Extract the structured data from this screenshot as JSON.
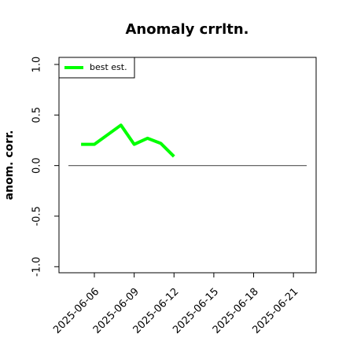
{
  "chart_data": {
    "type": "line",
    "title": "Anomaly crrltn.",
    "ylabel": "anom. corr.",
    "x": [
      "2025-06-05",
      "2025-06-06",
      "2025-06-08",
      "2025-06-09",
      "2025-06-10",
      "2025-06-11",
      "2025-06-12"
    ],
    "series": [
      {
        "name": "best est.",
        "color": "#00ff00",
        "values": [
          0.21,
          0.21,
          0.4,
          0.21,
          0.27,
          0.22,
          0.09
        ]
      }
    ],
    "xlim": [
      "2025-06-03T08:00",
      "2025-06-22T17:00"
    ],
    "xticks": [
      "2025-06-06",
      "2025-06-09",
      "2025-06-12",
      "2025-06-15",
      "2025-06-18",
      "2025-06-21"
    ],
    "ylim": [
      -1.06,
      1.07
    ],
    "yticks": [
      {
        "value": -1,
        "label": "-1.0"
      },
      -0.5,
      {
        "value": 0,
        "label": "0.0"
      },
      0.5,
      {
        "value": 1,
        "label": "1.0"
      }
    ],
    "hline": {
      "value": 0,
      "color": "#666666"
    },
    "legend": "top-left"
  }
}
